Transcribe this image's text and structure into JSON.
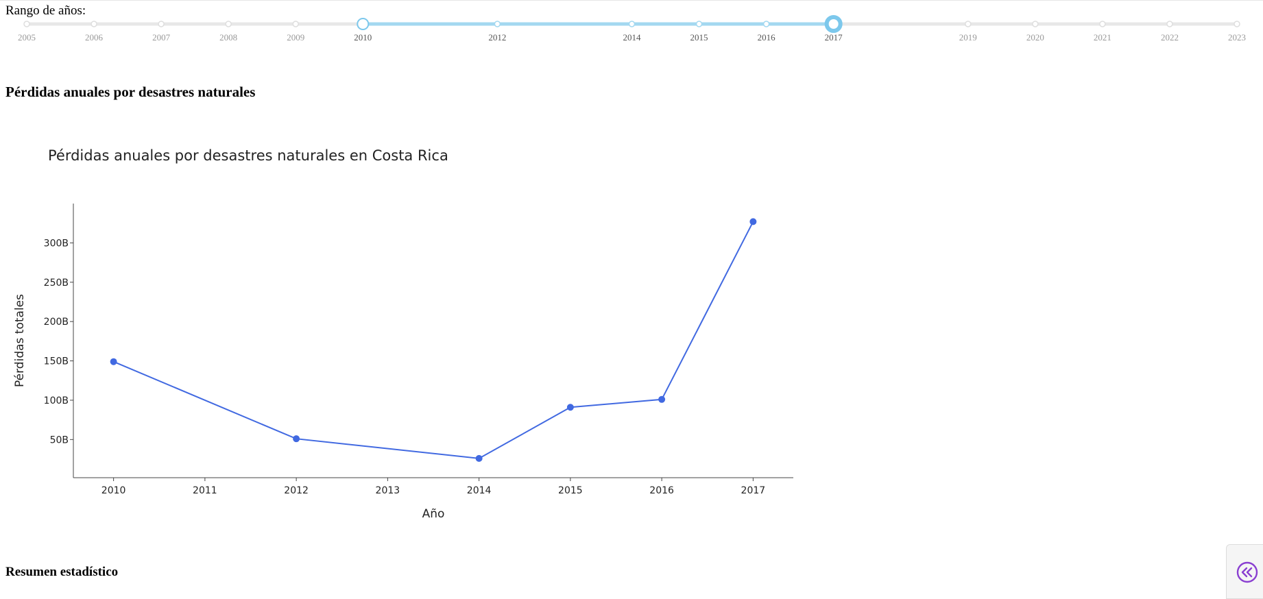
{
  "slider": {
    "label": "Rango de años:",
    "marks": [
      "2005",
      "2006",
      "2007",
      "2008",
      "2009",
      "2010",
      "2012",
      "2014",
      "2015",
      "2016",
      "2017",
      "2019",
      "2020",
      "2021",
      "2022",
      "2023"
    ],
    "mark_years": [
      2005,
      2006,
      2007,
      2008,
      2009,
      2010,
      2012,
      2014,
      2015,
      2016,
      2017,
      2019,
      2020,
      2021,
      2022,
      2023
    ],
    "selected_range": [
      2010,
      2017
    ],
    "track_color": "#e8e8e8",
    "active_color": "#a3d8f0",
    "handle_color": "#7cc8ec"
  },
  "section_title": "Pérdidas anuales por desastres naturales",
  "summary_title": "Resumen estadístico",
  "chart_data": {
    "type": "line",
    "title": "Pérdidas anuales por desastres naturales en Costa Rica",
    "xlabel": "Año",
    "ylabel": "Pérdidas totales",
    "x": [
      2010,
      2012,
      2014,
      2015,
      2016,
      2017
    ],
    "values": [
      149,
      51,
      26,
      91,
      101,
      327
    ],
    "value_unit": "B",
    "xticks": [
      "2010",
      "2011",
      "2012",
      "2013",
      "2014",
      "2015",
      "2016",
      "2017"
    ],
    "xlim": [
      2009.56,
      2017.44
    ],
    "yticks": [
      50,
      100,
      150,
      200,
      250,
      300
    ],
    "ytick_labels": [
      "50B",
      "100B",
      "150B",
      "200B",
      "250B",
      "300B"
    ],
    "ylim": [
      1.5,
      350
    ],
    "grid": false,
    "line_color": "#4169e1"
  },
  "sidebar_toggle": {
    "icon": "double-chevron-left-icon",
    "color": "#8a3fd1"
  }
}
